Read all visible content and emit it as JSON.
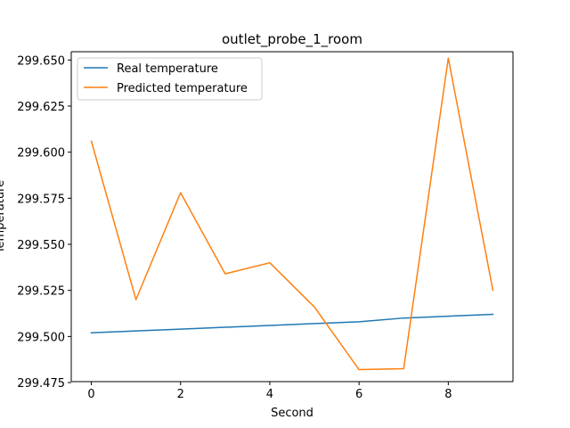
{
  "chart_data": {
    "type": "line",
    "title": "outlet_probe_1_room",
    "xlabel": "Second",
    "ylabel": "Temperature",
    "xlim": [
      -0.45,
      9.45
    ],
    "ylim": [
      299.4755,
      299.6545
    ],
    "x_ticks": [
      0,
      2,
      4,
      6,
      8
    ],
    "x_tick_labels": [
      "0",
      "2",
      "4",
      "6",
      "8"
    ],
    "y_ticks": [
      299.475,
      299.5,
      299.525,
      299.55,
      299.575,
      299.6,
      299.625,
      299.65
    ],
    "y_tick_labels": [
      "299.475",
      "299.500",
      "299.525",
      "299.550",
      "299.575",
      "299.600",
      "299.625",
      "299.650"
    ],
    "x": [
      0,
      1,
      2,
      3,
      4,
      5,
      6,
      7,
      8,
      9
    ],
    "series": [
      {
        "name": "Real temperature",
        "color": "#1f77b4",
        "values": [
          299.502,
          299.503,
          299.504,
          299.505,
          299.506,
          299.507,
          299.508,
          299.51,
          299.511,
          299.512
        ]
      },
      {
        "name": "Predicted temperature",
        "color": "#ff7f0e",
        "values": [
          299.606,
          299.52,
          299.578,
          299.534,
          299.54,
          299.516,
          299.482,
          299.4825,
          299.651,
          299.525
        ]
      }
    ],
    "legend_position": "upper-left",
    "grid": false
  }
}
